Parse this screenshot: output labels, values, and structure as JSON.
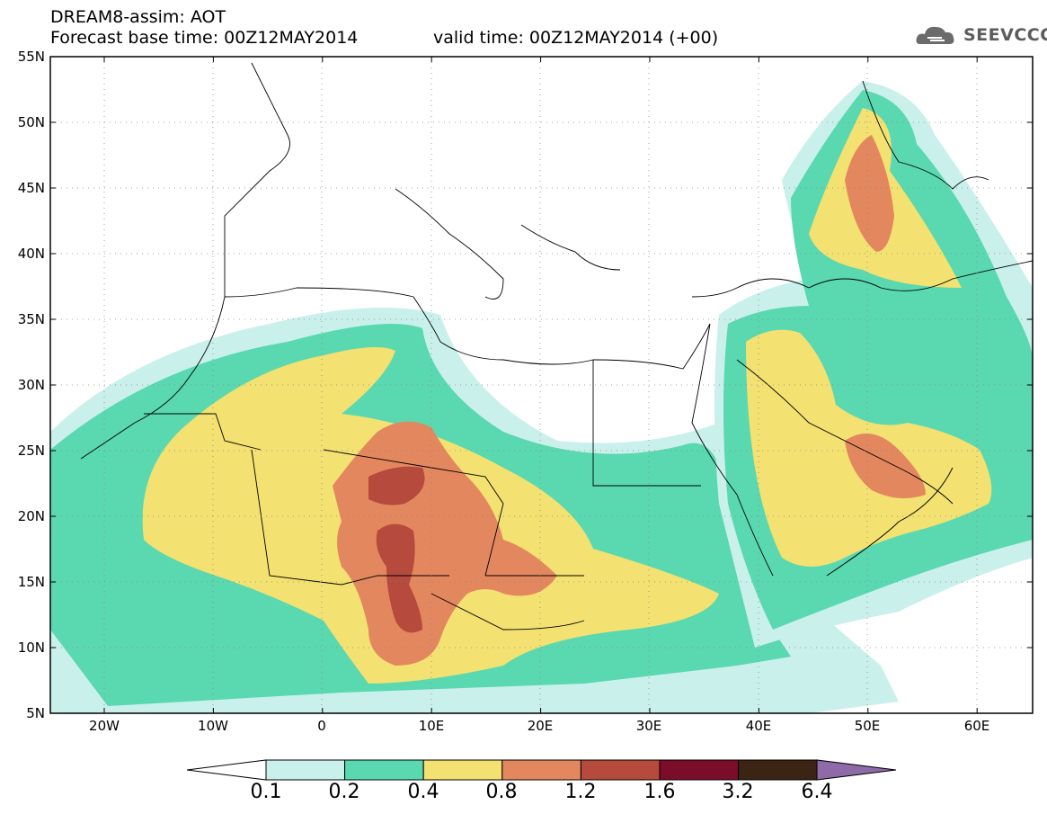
{
  "header": {
    "title": "DREAM8-assim: AOT",
    "forecast": "Forecast base time: 00Z12MAY2014",
    "valid": "valid time: 00Z12MAY2014 (+00)"
  },
  "logo": {
    "text": "SEEVCCC",
    "icon": "cloud-icon"
  },
  "map": {
    "region": "North Africa, Mediterranean, Middle East",
    "lon_range": [
      -25,
      65
    ],
    "lat_range": [
      5,
      55
    ],
    "lat_labels": [
      "5N",
      "10N",
      "15N",
      "20N",
      "25N",
      "30N",
      "35N",
      "40N",
      "45N",
      "50N",
      "55N"
    ],
    "lon_labels": [
      "20W",
      "10W",
      "0",
      "10E",
      "20E",
      "30E",
      "40E",
      "50E",
      "60E"
    ],
    "grid": "dotted"
  },
  "colorbar": {
    "labels": [
      "0.1",
      "0.2",
      "0.4",
      "0.8",
      "1.2",
      "1.6",
      "3.2",
      "6.4"
    ],
    "colors": [
      "#c9f0eb",
      "#5ad8b0",
      "#f3e171",
      "#e3875f",
      "#b54a3d",
      "#7c0d2a",
      "#3c2414",
      "#8e6aa8"
    ]
  }
}
